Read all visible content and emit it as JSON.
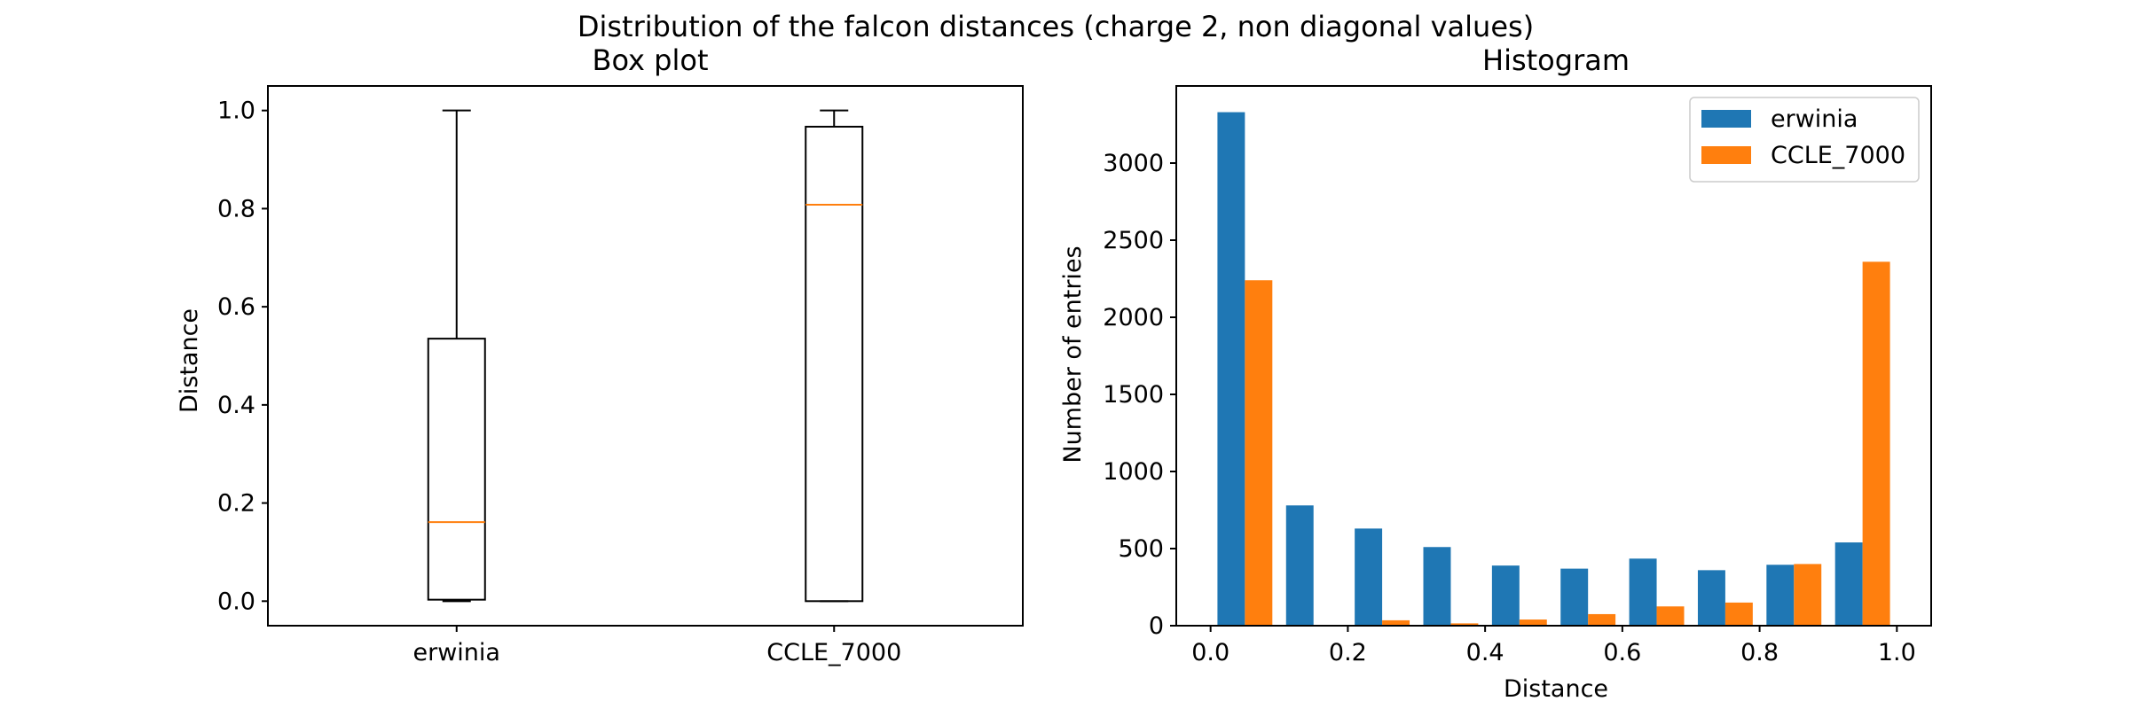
{
  "figure": {
    "suptitle": "Distribution of the falcon distances (charge 2, non diagonal values)"
  },
  "chart_data": [
    {
      "type": "box",
      "title": "Box plot",
      "xlabel": "",
      "ylabel": "Distance",
      "categories": [
        "erwinia",
        "CCLE_7000"
      ],
      "boxes": [
        {
          "name": "erwinia",
          "whislo": 0.0,
          "q1": 0.003,
          "median": 0.161,
          "q3": 0.535,
          "whishi": 1.0
        },
        {
          "name": "CCLE_7000",
          "whislo": 0.0,
          "q1": 0.0,
          "median": 0.808,
          "q3": 0.967,
          "whishi": 1.0
        }
      ],
      "ylim": [
        -0.05,
        1.05
      ],
      "yticks": [
        0.0,
        0.2,
        0.4,
        0.6,
        0.8,
        1.0
      ],
      "ytick_labels": [
        "0.0",
        "0.2",
        "0.4",
        "0.6",
        "0.8",
        "1.0"
      ],
      "box_color": "#000000",
      "median_color": "#ff7f0e",
      "grid": false
    },
    {
      "type": "bar",
      "title": "Histogram",
      "xlabel": "Distance",
      "ylabel": "Number of entries",
      "bin_edges": [
        0.0,
        0.1,
        0.2,
        0.3,
        0.4,
        0.5,
        0.6,
        0.7,
        0.8,
        0.9,
        1.0
      ],
      "series": [
        {
          "name": "erwinia",
          "color": "#1f77b4",
          "values": [
            3330,
            780,
            630,
            510,
            390,
            370,
            435,
            360,
            395,
            540
          ]
        },
        {
          "name": "CCLE_7000",
          "color": "#ff7f0e",
          "values": [
            2240,
            0,
            35,
            15,
            40,
            75,
            125,
            150,
            400,
            2360
          ]
        }
      ],
      "xlim": [
        -0.05,
        1.05
      ],
      "ylim": [
        0,
        3500
      ],
      "xticks": [
        0.0,
        0.2,
        0.4,
        0.6,
        0.8,
        1.0
      ],
      "xtick_labels": [
        "0.0",
        "0.2",
        "0.4",
        "0.6",
        "0.8",
        "1.0"
      ],
      "yticks": [
        0,
        500,
        1000,
        1500,
        2000,
        2500,
        3000
      ],
      "ytick_labels": [
        "0",
        "500",
        "1000",
        "1500",
        "2000",
        "2500",
        "3000"
      ],
      "legend": "top-right",
      "grid": false
    }
  ]
}
